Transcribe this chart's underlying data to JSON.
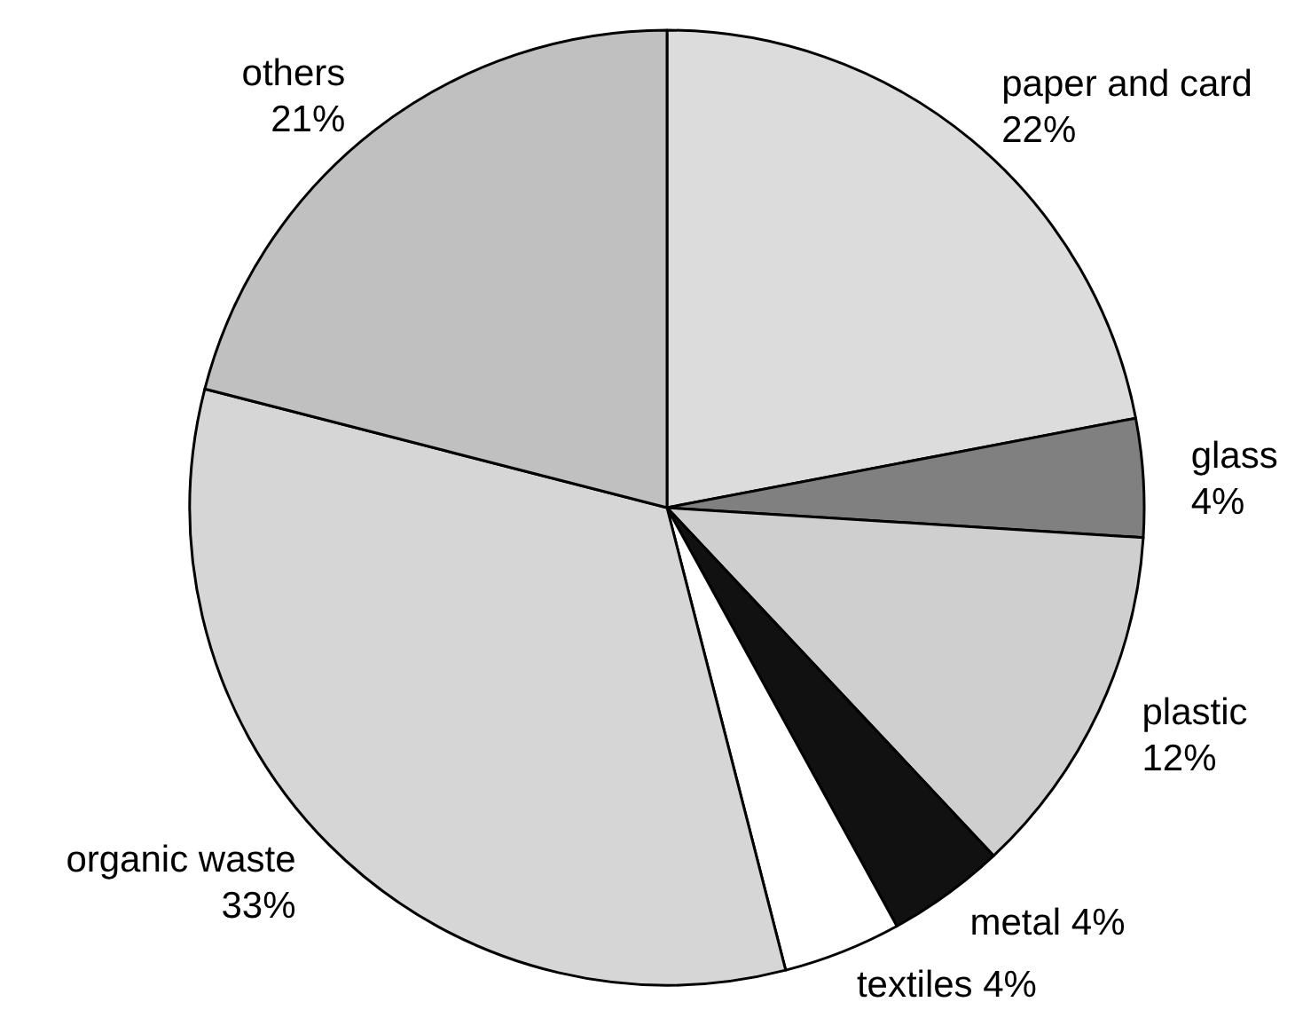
{
  "chart_data": {
    "type": "pie",
    "categories": [
      "paper and card",
      "glass",
      "plastic",
      "metal",
      "textiles",
      "organic waste",
      "others"
    ],
    "values": [
      22,
      4,
      12,
      4,
      4,
      33,
      21
    ],
    "colors": [
      "#dcdcdc",
      "#808080",
      "#cfcfcf",
      "#111111",
      "#ffffff",
      "#d6d6d6",
      "#c0c0c0"
    ],
    "value_labels": [
      "22%",
      "4%",
      "12%",
      "4%",
      "4%",
      "33%",
      "21%"
    ]
  }
}
